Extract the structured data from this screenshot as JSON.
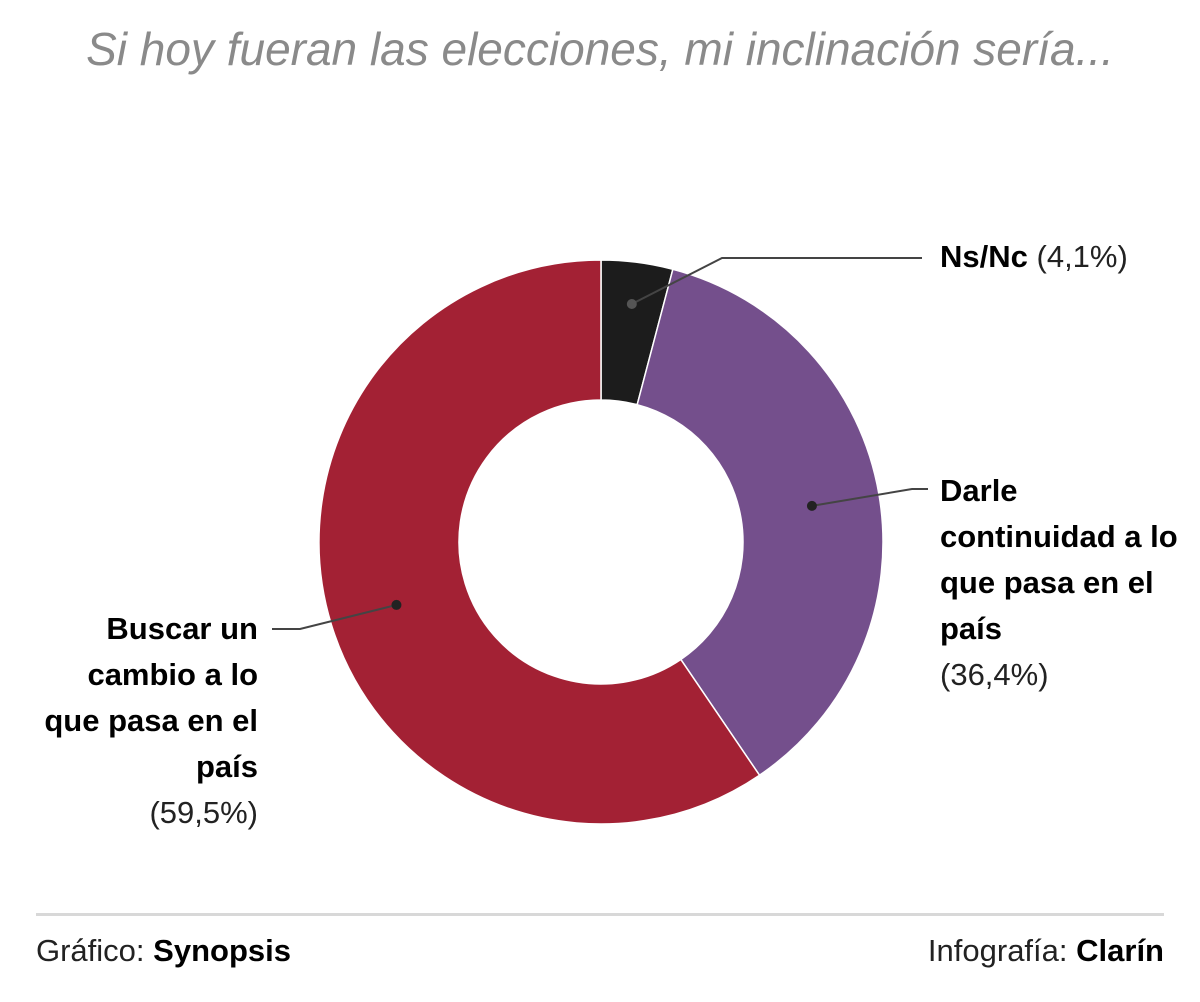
{
  "chart_data": {
    "type": "pie",
    "title": "Si hoy fueran las elecciones, mi inclinación sería...",
    "slices": [
      {
        "label": "Ns/Nc",
        "value": 4.1,
        "value_text": "(4,1%)",
        "color": "#1c1c1c"
      },
      {
        "label": "Darle continuidad a lo que pasa en el país",
        "value": 36.4,
        "value_text": "(36,4%)",
        "color": "#744f8c"
      },
      {
        "label": "Buscar un cambio a lo que pasa en el país",
        "value": 59.5,
        "value_text": "(59,5%)",
        "color": "#a32134"
      }
    ]
  },
  "footer": {
    "left_prefix": "Gráfico:",
    "left_source": "Synopsis",
    "right_prefix": "Infografía:",
    "right_source": "Clarín"
  }
}
